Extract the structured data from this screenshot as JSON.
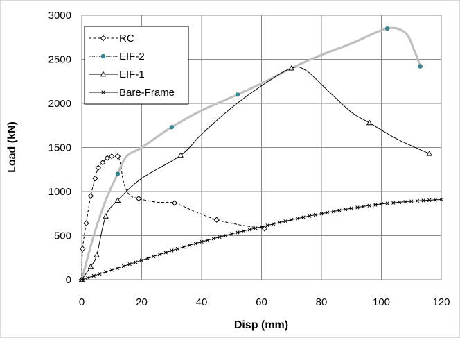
{
  "chart_data": {
    "type": "line",
    "xlabel": "Disp (mm)",
    "ylabel": "Load (kN)",
    "xlim": [
      0,
      120
    ],
    "ylim": [
      0,
      3000
    ],
    "x_ticks": [
      "0",
      "20",
      "40",
      "60",
      "80",
      "100",
      "120"
    ],
    "y_ticks": [
      "0",
      "500",
      "1000",
      "1500",
      "2000",
      "2500",
      "3000"
    ],
    "grid": true,
    "legend_position": "top-left",
    "series": [
      {
        "name": "RC",
        "color": "#000000",
        "line_style": "dashed",
        "marker": "diamond",
        "points": [
          [
            0,
            0
          ],
          [
            0.3,
            350
          ],
          [
            1.5,
            640
          ],
          [
            3,
            950
          ],
          [
            4.5,
            1150
          ],
          [
            5.5,
            1270
          ],
          [
            7,
            1330
          ],
          [
            8.5,
            1380
          ],
          [
            10,
            1400
          ],
          [
            12,
            1400
          ],
          [
            13,
            1300
          ],
          [
            14,
            1100
          ],
          [
            16,
            960
          ],
          [
            19,
            920
          ],
          [
            25,
            880
          ],
          [
            31,
            870
          ],
          [
            38,
            770
          ],
          [
            45,
            680
          ],
          [
            53,
            620
          ],
          [
            61,
            580
          ]
        ],
        "marker_points": [
          [
            0,
            0
          ],
          [
            0.3,
            350
          ],
          [
            1.5,
            640
          ],
          [
            3,
            950
          ],
          [
            4.5,
            1150
          ],
          [
            5.5,
            1270
          ],
          [
            7,
            1330
          ],
          [
            8.5,
            1380
          ],
          [
            10,
            1400
          ],
          [
            12,
            1400
          ],
          [
            19,
            920
          ],
          [
            31,
            870
          ],
          [
            45,
            680
          ],
          [
            61,
            580
          ]
        ]
      },
      {
        "name": "EIF-2",
        "color": "#bfbfbf",
        "marker_color": "#2e8b9a",
        "line_style": "solid",
        "marker": "dot",
        "points": [
          [
            0,
            0
          ],
          [
            4,
            500
          ],
          [
            8,
            900
          ],
          [
            12,
            1200
          ],
          [
            15,
            1400
          ],
          [
            20,
            1500
          ],
          [
            30,
            1730
          ],
          [
            40,
            1920
          ],
          [
            52,
            2100
          ],
          [
            62,
            2260
          ],
          [
            70,
            2400
          ],
          [
            80,
            2550
          ],
          [
            90,
            2680
          ],
          [
            102,
            2850
          ],
          [
            108,
            2800
          ],
          [
            111,
            2600
          ],
          [
            113,
            2420
          ]
        ],
        "marker_points": [
          [
            0,
            0
          ],
          [
            12,
            1200
          ],
          [
            30,
            1730
          ],
          [
            52,
            2100
          ],
          [
            102,
            2850
          ],
          [
            113,
            2420
          ]
        ]
      },
      {
        "name": "EIF-1",
        "color": "#000000",
        "line_style": "solid",
        "marker": "triangle",
        "points": [
          [
            0,
            0
          ],
          [
            3,
            150
          ],
          [
            5,
            280
          ],
          [
            8,
            720
          ],
          [
            12,
            900
          ],
          [
            20,
            1150
          ],
          [
            33,
            1410
          ],
          [
            40,
            1650
          ],
          [
            50,
            1950
          ],
          [
            60,
            2200
          ],
          [
            70,
            2400
          ],
          [
            75,
            2370
          ],
          [
            82,
            2150
          ],
          [
            90,
            1900
          ],
          [
            96,
            1780
          ],
          [
            105,
            1600
          ],
          [
            116,
            1430
          ]
        ],
        "marker_points": [
          [
            0,
            0
          ],
          [
            3,
            150
          ],
          [
            5,
            280
          ],
          [
            8,
            720
          ],
          [
            12,
            900
          ],
          [
            33,
            1410
          ],
          [
            70,
            2400
          ],
          [
            96,
            1780
          ],
          [
            116,
            1430
          ]
        ]
      },
      {
        "name": "Bare-Frame",
        "color": "#000000",
        "line_style": "solid",
        "marker": "x",
        "points": [
          [
            0,
            0
          ],
          [
            10,
            110
          ],
          [
            20,
            220
          ],
          [
            30,
            330
          ],
          [
            40,
            430
          ],
          [
            50,
            520
          ],
          [
            60,
            600
          ],
          [
            70,
            680
          ],
          [
            80,
            750
          ],
          [
            90,
            810
          ],
          [
            100,
            860
          ],
          [
            110,
            890
          ],
          [
            120,
            910
          ]
        ],
        "marker_step": 2
      }
    ]
  }
}
